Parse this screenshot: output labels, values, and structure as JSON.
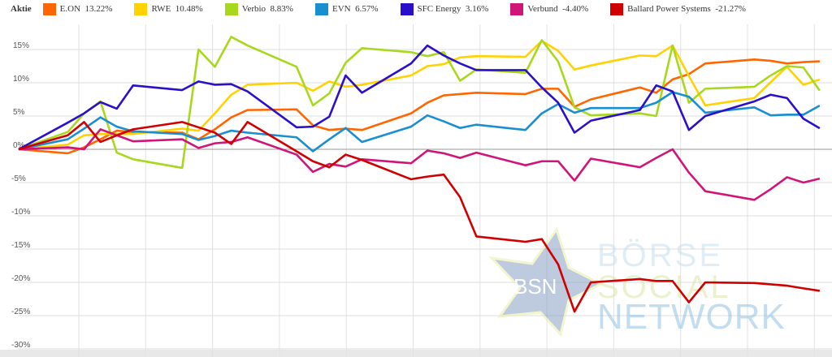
{
  "chart_data": {
    "type": "line",
    "title": "",
    "legend_title": "Aktie",
    "legend_position": "top",
    "xlabel": "",
    "ylabel": "",
    "ylim": [
      -30,
      18
    ],
    "yticks": [
      15,
      10,
      5,
      0,
      -5,
      -10,
      -15,
      -20,
      -25,
      -30
    ],
    "ytick_labels": [
      "15%",
      "10%",
      "5%",
      "0%",
      "-5%",
      "-10%",
      "-15%",
      "-20%",
      "-25%",
      "-30%"
    ],
    "grid": true,
    "x": [
      0,
      3,
      4,
      5,
      6,
      7,
      10,
      11,
      12,
      13,
      14,
      17,
      18,
      19,
      20,
      21,
      24,
      25,
      26,
      27,
      28,
      31,
      32,
      33,
      34,
      35,
      38,
      39,
      40,
      41,
      42,
      45,
      46,
      47,
      48,
      49
    ],
    "series": [
      {
        "name": "E.ON",
        "change": "13.22%",
        "color": "#ff6600",
        "values": [
          0,
          -0.6,
          0.3,
          1.5,
          2.8,
          2.6,
          2.5,
          1.5,
          3.0,
          4.8,
          5.9,
          6.0,
          3.6,
          2.9,
          3.1,
          2.9,
          5.4,
          7.0,
          8.1,
          8.3,
          8.5,
          8.3,
          9.1,
          9.1,
          6.4,
          7.5,
          9.3,
          8.5,
          10.5,
          11.3,
          12.9,
          13.5,
          13.3,
          12.9,
          13.1,
          13.22
        ]
      },
      {
        "name": "RWE",
        "change": "10.48%",
        "color": "#ffd200",
        "values": [
          0,
          0.7,
          2.1,
          2.3,
          2.3,
          2.3,
          3.1,
          2.8,
          5.4,
          8.2,
          9.7,
          10.0,
          8.8,
          10.2,
          9.4,
          9.7,
          11.1,
          12.5,
          12.8,
          13.8,
          14.0,
          13.9,
          16.3,
          14.8,
          12.0,
          12.6,
          14.1,
          14.0,
          15.6,
          11.0,
          6.6,
          7.7,
          10.1,
          12.4,
          9.7,
          10.48
        ]
      },
      {
        "name": "Verbio",
        "change": "8.83%",
        "color": "#a8d81c",
        "values": [
          0,
          2.6,
          5.4,
          7.2,
          -0.5,
          -1.5,
          -2.8,
          15.0,
          12.4,
          16.9,
          15.6,
          12.4,
          6.6,
          8.4,
          13.0,
          15.2,
          14.6,
          14.0,
          14.6,
          10.3,
          12.0,
          11.5,
          16.4,
          13.2,
          6.3,
          5.1,
          5.4,
          5.0,
          15.6,
          7.0,
          9.1,
          9.4,
          11.1,
          12.5,
          12.3,
          8.83
        ]
      },
      {
        "name": "EVN",
        "change": "6.57%",
        "color": "#1a8fd0",
        "values": [
          0,
          1.5,
          3.1,
          4.8,
          3.4,
          2.7,
          2.3,
          1.4,
          2.0,
          2.8,
          2.5,
          1.8,
          -0.3,
          1.5,
          3.2,
          1.1,
          3.4,
          5.1,
          4.2,
          3.2,
          3.7,
          2.9,
          5.4,
          6.8,
          5.5,
          6.2,
          6.2,
          7.0,
          8.6,
          7.9,
          5.5,
          6.3,
          5.1,
          5.2,
          5.2,
          6.57
        ]
      },
      {
        "name": "SFC Energy",
        "change": "3.16%",
        "color": "#2a10c8",
        "values": [
          0,
          4.0,
          5.4,
          7.1,
          6.1,
          9.6,
          8.9,
          10.2,
          9.7,
          9.8,
          8.7,
          3.3,
          3.4,
          4.9,
          11.1,
          8.5,
          12.9,
          15.6,
          14.1,
          12.9,
          11.9,
          11.9,
          9.3,
          7.0,
          2.5,
          4.3,
          5.9,
          9.6,
          8.7,
          2.9,
          5.0,
          7.2,
          8.2,
          7.7,
          4.6,
          3.16
        ]
      },
      {
        "name": "Verbund",
        "change": "-4.40%",
        "color": "#d0157a",
        "values": [
          0,
          0.3,
          0,
          3.0,
          2.1,
          1.2,
          1.5,
          0.2,
          0.9,
          1.1,
          1.8,
          -0.8,
          -3.4,
          -2.2,
          -2.6,
          -1.5,
          -2.1,
          -0.2,
          -0.6,
          -1.3,
          -0.5,
          -2.4,
          -1.8,
          -1.8,
          -4.7,
          -1.4,
          -2.7,
          -1.3,
          0,
          -3.5,
          -6.3,
          -7.6,
          -6.0,
          -4.2,
          -5.0,
          -4.4
        ]
      },
      {
        "name": "Ballard Power Systems",
        "change": "-21.27%",
        "color": "#d00000",
        "values": [
          0,
          2.1,
          4.1,
          1.1,
          2.1,
          3.0,
          4.1,
          3.3,
          2.5,
          0.8,
          4.1,
          -0.3,
          -1.8,
          -2.7,
          -0.8,
          -1.6,
          -4.5,
          -4.1,
          -3.8,
          -7.2,
          -13.1,
          -13.9,
          -13.5,
          -17.3,
          -24.4,
          -20.0,
          -19.5,
          -19.8,
          -19.8,
          -23.0,
          -20.0,
          -20.1,
          -20.3,
          -20.5,
          -20.9,
          -21.27
        ]
      }
    ]
  },
  "watermark": {
    "badge": "BSN",
    "line1": "BÖRSE",
    "line2": "SOCIAL",
    "line3": "NETWORK"
  }
}
